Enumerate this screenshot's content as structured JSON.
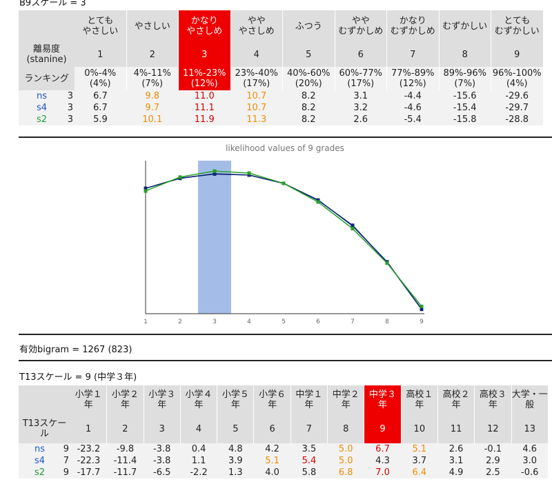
{
  "b9": {
    "title": "B9スケール = 3",
    "grade_label": "離易度\n(stanine)",
    "ranking_label": "ランキング",
    "selected": 3,
    "headers": [
      "とても\nやさしい",
      "やさしい",
      "かなり\nやさしめ",
      "やや\nやさしめ",
      "ふつう",
      "やや\nむずかしめ",
      "かなり\nむずかしめ",
      "むずかしい",
      "とても\nむずかしい"
    ],
    "grades": [
      "1",
      "2",
      "3",
      "4",
      "5",
      "6",
      "7",
      "8",
      "9"
    ],
    "rankings": [
      "0%-4%\n(4%)",
      "4%-11%\n(7%)",
      "11%-23%\n(12%)",
      "23%-40%\n(17%)",
      "40%-60%\n(20%)",
      "60%-77%\n(17%)",
      "77%-89%\n(12%)",
      "89%-96%\n(7%)",
      "96%-100%\n(4%)"
    ],
    "rows": [
      {
        "name": "ns",
        "grade": "3",
        "values": [
          "6.7",
          "9.8",
          "11.0",
          "10.7",
          "8.2",
          "3.1",
          "-4.4",
          "-15.6",
          "-29.6"
        ],
        "orange": [
          1,
          3
        ],
        "red": [
          2
        ]
      },
      {
        "name": "s4",
        "grade": "3",
        "values": [
          "6.7",
          "9.7",
          "11.1",
          "10.7",
          "8.2",
          "3.2",
          "-4.6",
          "-15.4",
          "-29.7"
        ],
        "orange": [
          1,
          3
        ],
        "red": [
          2
        ]
      },
      {
        "name": "s2",
        "grade": "3",
        "values": [
          "5.9",
          "10.1",
          "11.9",
          "11.3",
          "8.2",
          "2.6",
          "-5.4",
          "-15.8",
          "-28.8"
        ],
        "orange": [
          1,
          3
        ],
        "red": [
          2
        ]
      }
    ]
  },
  "chart_data": {
    "type": "line",
    "title": "likelihood values of 9 grades",
    "x": [
      1,
      2,
      3,
      4,
      5,
      6,
      7,
      8,
      9
    ],
    "highlight_x": 3,
    "ylim": [
      -31,
      14
    ],
    "series": [
      {
        "name": "ns",
        "color": "#1a2f9a",
        "values": [
          6.7,
          9.8,
          11.0,
          10.7,
          8.2,
          3.1,
          -4.4,
          -15.6,
          -29.6
        ]
      },
      {
        "name": "s4",
        "color": "#0d2a6e",
        "values": [
          6.7,
          9.7,
          11.1,
          10.7,
          8.2,
          3.2,
          -4.6,
          -15.4,
          -29.7
        ]
      },
      {
        "name": "s2",
        "color": "#2aa02a",
        "values": [
          5.9,
          10.1,
          11.9,
          11.3,
          8.2,
          2.6,
          -5.4,
          -15.8,
          -28.8
        ]
      }
    ],
    "highlight_color": "#a4bde8",
    "grid": false
  },
  "bigram": {
    "text": "有効bigram = 1267 (823)"
  },
  "t13": {
    "title": "T13スケール = 9 (中学３年)",
    "grade_label": "T13スケー\nル",
    "selected": 9,
    "headers": [
      "小学１\n年",
      "小学２\n年",
      "小学３\n年",
      "小学４\n年",
      "小学５\n年",
      "小学６\n年",
      "中学１\n年",
      "中学２\n年",
      "中学３\n年",
      "高校１\n年",
      "高校２\n年",
      "高校３\n年",
      "大学・一\n般"
    ],
    "grades": [
      "1",
      "2",
      "3",
      "4",
      "5",
      "6",
      "7",
      "8",
      "9",
      "10",
      "11",
      "12",
      "13"
    ],
    "rows": [
      {
        "name": "ns",
        "grade": "9",
        "values": [
          "-23.2",
          "-9.8",
          "-3.8",
          "0.4",
          "4.8",
          "4.2",
          "3.5",
          "5.0",
          "6.7",
          "5.1",
          "2.6",
          "-0.1",
          "4.6"
        ],
        "orange": [
          7,
          9
        ],
        "red": [
          8
        ]
      },
      {
        "name": "s4",
        "grade": "7",
        "values": [
          "-22.3",
          "-11.4",
          "-3.8",
          "1.1",
          "3.9",
          "5.1",
          "5.4",
          "5.0",
          "4.3",
          "3.7",
          "3.1",
          "2.9",
          "3.0"
        ],
        "orange": [
          5,
          7
        ],
        "red": [
          6
        ]
      },
      {
        "name": "s2",
        "grade": "9",
        "values": [
          "-17.7",
          "-11.7",
          "-6.5",
          "-2.2",
          "1.3",
          "4.0",
          "5.8",
          "6.8",
          "7.0",
          "6.4",
          "4.9",
          "2.5",
          "-0.6"
        ],
        "orange": [
          7,
          9
        ],
        "red": [
          8
        ]
      }
    ]
  }
}
